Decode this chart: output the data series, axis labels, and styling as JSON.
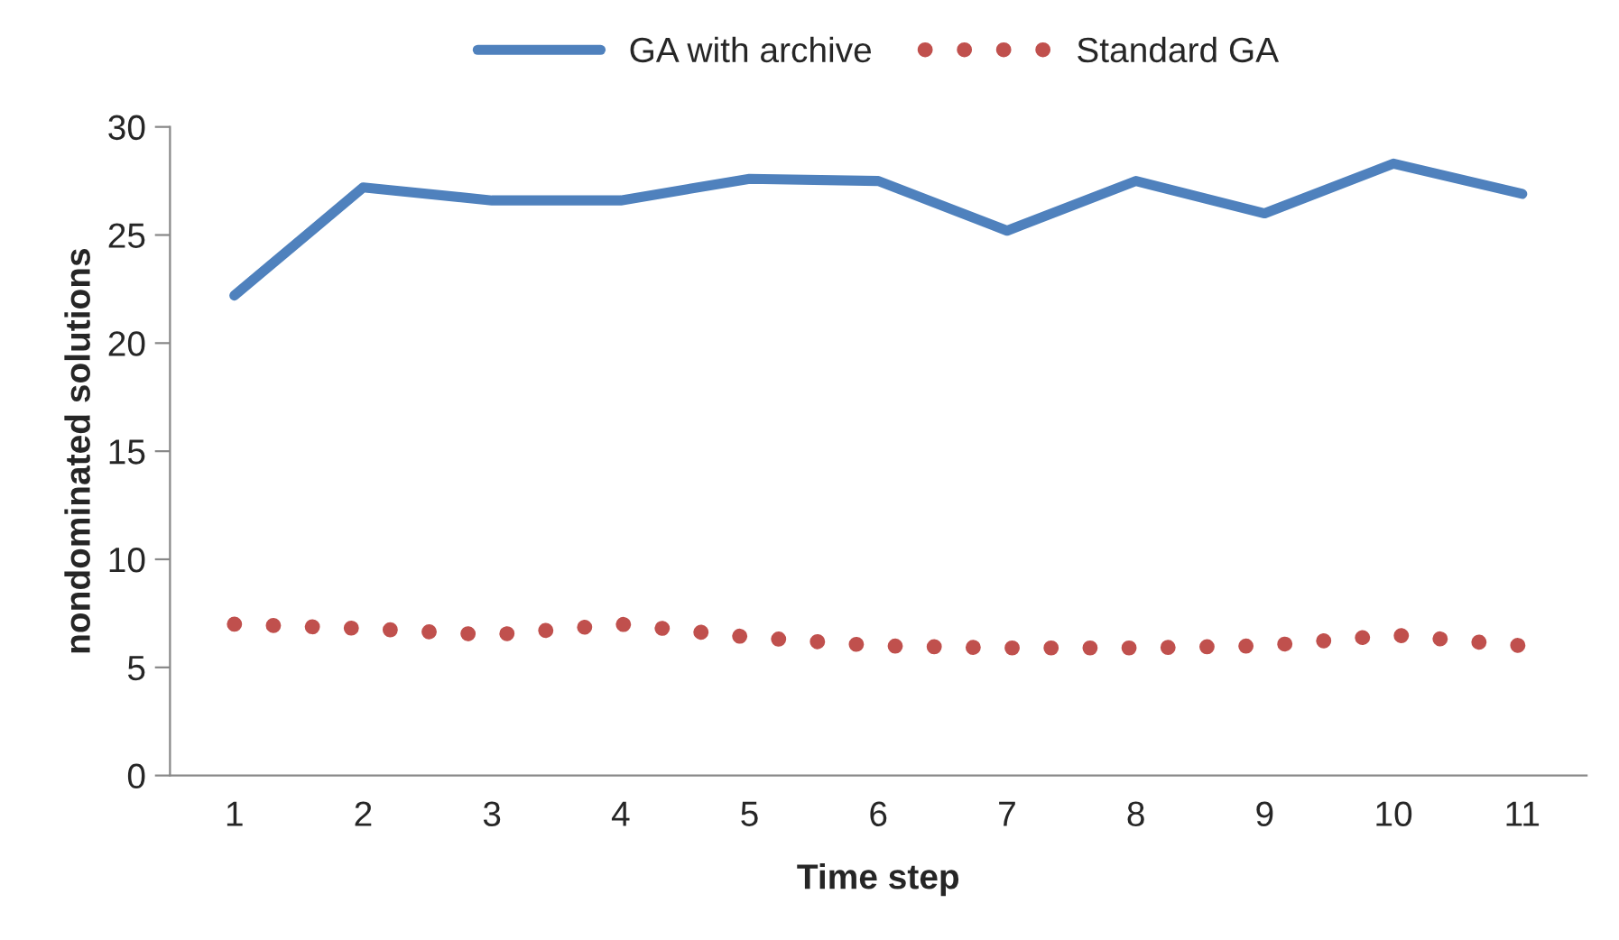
{
  "chart_data": {
    "type": "line",
    "xlabel": "Time step",
    "ylabel": "nondominated solutions",
    "categories": [
      "1",
      "2",
      "3",
      "4",
      "5",
      "6",
      "7",
      "8",
      "9",
      "10",
      "11"
    ],
    "series": [
      {
        "name": "GA with archive",
        "color": "#4f81bd",
        "line_style": "solid",
        "values": [
          22.2,
          27.2,
          26.6,
          26.6,
          27.6,
          27.5,
          25.2,
          27.5,
          26.0,
          28.3,
          26.9
        ]
      },
      {
        "name": "Standard GA",
        "color": "#c0504d",
        "line_style": "dotted",
        "values": [
          7.0,
          6.8,
          6.5,
          7.0,
          6.4,
          6.0,
          5.9,
          5.9,
          6.0,
          6.5,
          6.0
        ]
      }
    ],
    "ylim": [
      0,
      30
    ],
    "yticks": [
      0,
      5,
      10,
      15,
      20,
      25,
      30
    ],
    "grid": false,
    "legend": "top",
    "marker": "none"
  }
}
